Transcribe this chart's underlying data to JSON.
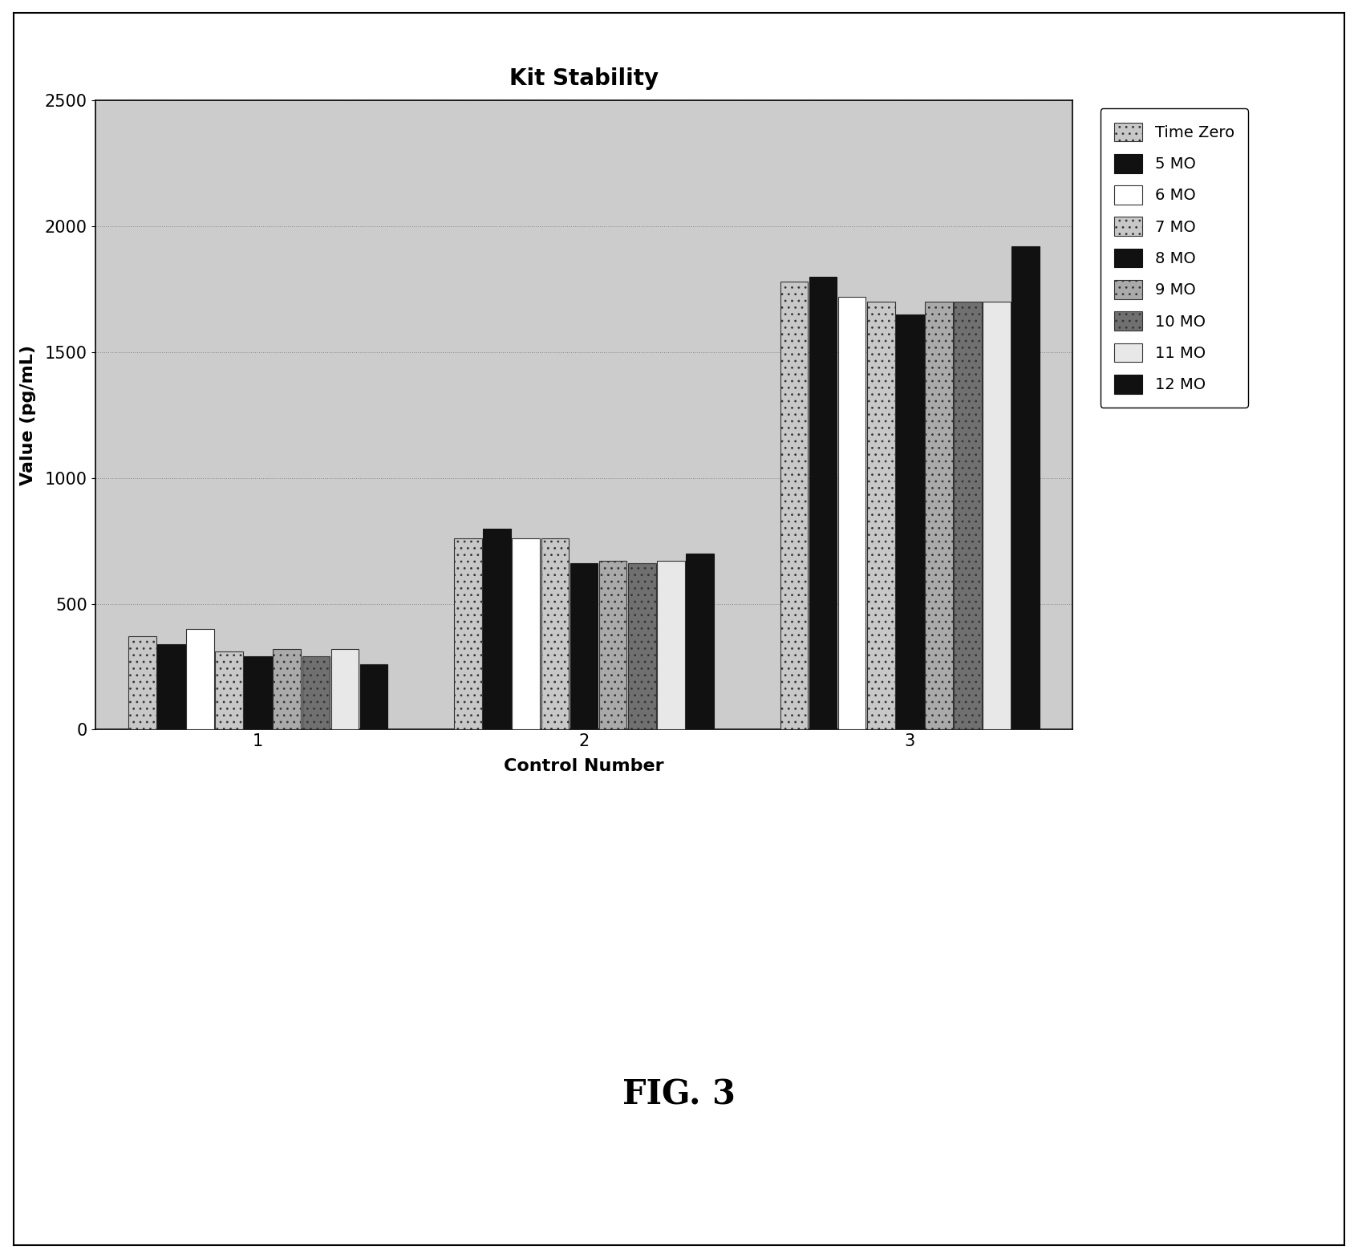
{
  "title": "Kit Stability",
  "xlabel": "Control Number",
  "ylabel": "Value (pg/mL)",
  "categories": [
    1,
    2,
    3
  ],
  "series_labels": [
    "Time Zero",
    "5 MO",
    "6 MO",
    "7 MO",
    "8 MO",
    "9 MO",
    "10 MO",
    "11 MO",
    "12 MO"
  ],
  "values": [
    [
      370,
      760,
      1780
    ],
    [
      340,
      800,
      1800
    ],
    [
      400,
      760,
      1720
    ],
    [
      310,
      760,
      1700
    ],
    [
      290,
      660,
      1650
    ],
    [
      320,
      670,
      1700
    ],
    [
      290,
      660,
      1700
    ],
    [
      320,
      670,
      1700
    ],
    [
      260,
      700,
      1920
    ]
  ],
  "bar_colors": [
    "#c8c8c8",
    "#111111",
    "#ffffff",
    "#c8c8c8",
    "#111111",
    "#aaaaaa",
    "#707070",
    "#e8e8e8",
    "#111111"
  ],
  "bar_hatches": [
    "..",
    "",
    "",
    "..",
    "",
    "..",
    "..",
    "",
    ""
  ],
  "bar_edgecolors": [
    "#333333",
    "#111111",
    "#333333",
    "#333333",
    "#111111",
    "#333333",
    "#333333",
    "#333333",
    "#111111"
  ],
  "ylim": [
    0,
    2500
  ],
  "yticks": [
    0,
    500,
    1000,
    1500,
    2000,
    2500
  ],
  "title_fontsize": 20,
  "axis_fontsize": 16,
  "tick_fontsize": 15,
  "legend_fontsize": 14,
  "plot_bg_color": "#cccccc",
  "fig_caption": "FIG. 3"
}
